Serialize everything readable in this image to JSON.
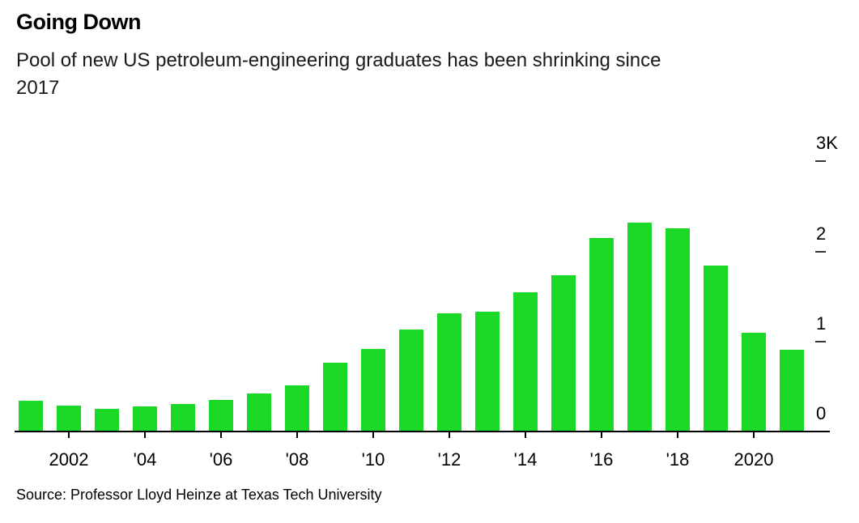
{
  "header": {
    "title": "Going Down",
    "subtitle_line1": "Pool of new US petroleum-engineering graduates has been shrinking since",
    "subtitle_line2": "2017"
  },
  "footer": {
    "source": "Source: Professor Lloyd Heinze at Texas Tech University"
  },
  "colors": {
    "background": "#ffffff",
    "bar": "#1bd927",
    "axis": "#000000",
    "text": "#000000"
  },
  "chart_data": {
    "type": "bar",
    "title": "Going Down",
    "subtitle": "Pool of new US petroleum-engineering graduates has been shrinking since 2017",
    "unit": "graduates per year",
    "categories": [
      2001,
      2002,
      2003,
      2004,
      2005,
      2006,
      2007,
      2008,
      2009,
      2010,
      2011,
      2012,
      2013,
      2014,
      2015,
      2016,
      2017,
      2018,
      2019,
      2020,
      2021
    ],
    "values": [
      340,
      290,
      250,
      280,
      305,
      355,
      425,
      510,
      760,
      920,
      1130,
      1310,
      1330,
      1550,
      1740,
      2150,
      2320,
      2260,
      1840,
      1100,
      910
    ],
    "x_ticks": [
      {
        "year": 2002,
        "label": "2002"
      },
      {
        "year": 2004,
        "label": "'04"
      },
      {
        "year": 2006,
        "label": "'06"
      },
      {
        "year": 2008,
        "label": "'08"
      },
      {
        "year": 2010,
        "label": "'10"
      },
      {
        "year": 2012,
        "label": "'12"
      },
      {
        "year": 2014,
        "label": "'14"
      },
      {
        "year": 2016,
        "label": "'16"
      },
      {
        "year": 2018,
        "label": "'18"
      },
      {
        "year": 2020,
        "label": "2020"
      }
    ],
    "y_ticks": [
      {
        "value": 0,
        "label": "0"
      },
      {
        "value": 1000,
        "label": "1"
      },
      {
        "value": 2000,
        "label": "2"
      },
      {
        "value": 3000,
        "label": "3K"
      }
    ],
    "ylim": [
      0,
      3000
    ],
    "xlabel": "",
    "ylabel": "",
    "grid": false,
    "legend": "none",
    "y_axis_side": "right",
    "bar_color": "#1bd927"
  }
}
